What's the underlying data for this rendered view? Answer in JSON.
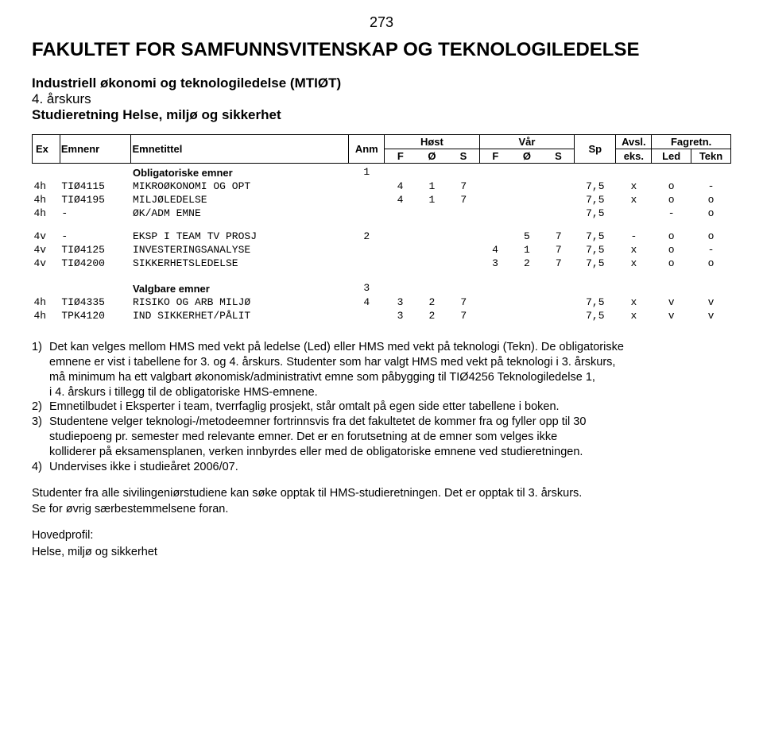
{
  "page_number": "273",
  "faculty_title": "FAKULTET FOR SAMFUNNSVITENSKAP OG TEKNOLOGILEDELSE",
  "subtitle_line1": "Industriell økonomi og teknologiledelse (MTIØT)",
  "subtitle_line2": "4. årskurs",
  "subtitle_line3": "Studieretning Helse, miljø og sikkerhet",
  "headers": {
    "ex": "Ex",
    "emnenr": "Emnenr",
    "emnetittel": "Emnetittel",
    "anm": "Anm",
    "host": "Høst",
    "var": "Vår",
    "sp": "Sp",
    "avsl": "Avsl.",
    "fagretn": "Fagretn.",
    "F": "F",
    "O": "Ø",
    "S": "S",
    "eks": "eks.",
    "led": "Led",
    "tekn": "Tekn"
  },
  "sections": [
    {
      "title": "Obligatoriske emner",
      "anm": "1",
      "rows": [
        {
          "ex": "4h",
          "code": "TIØ4115",
          "name": "MIKROØKONOMI OG OPT",
          "anm": "",
          "F1": "4",
          "O1": "1",
          "S1": "7",
          "F2": "",
          "O2": "",
          "S2": "",
          "sp": "7,5",
          "av": "x",
          "led": "o",
          "tek": "-"
        },
        {
          "ex": "4h",
          "code": "TIØ4195",
          "name": "MILJØLEDELSE",
          "anm": "",
          "F1": "4",
          "O1": "1",
          "S1": "7",
          "F2": "",
          "O2": "",
          "S2": "",
          "sp": "7,5",
          "av": "x",
          "led": "o",
          "tek": "o"
        },
        {
          "ex": "4h",
          "code": "-",
          "name": "ØK/ADM EMNE",
          "anm": "",
          "F1": "",
          "O1": "",
          "S1": "",
          "F2": "",
          "O2": "",
          "S2": "",
          "sp": "7,5",
          "av": "",
          "led": "-",
          "tek": "o"
        }
      ]
    },
    {
      "title": "",
      "anm": "",
      "rows": [
        {
          "ex": "4v",
          "code": "-",
          "name": "EKSP I TEAM TV PROSJ",
          "anm": "2",
          "F1": "",
          "O1": "",
          "S1": "",
          "F2": "",
          "O2": "5",
          "S2": "7",
          "sp": "7,5",
          "av": "-",
          "led": "o",
          "tek": "o"
        },
        {
          "ex": "4v",
          "code": "TIØ4125",
          "name": "INVESTERINGSANALYSE",
          "anm": "",
          "F1": "",
          "O1": "",
          "S1": "",
          "F2": "4",
          "O2": "1",
          "S2": "7",
          "sp": "7,5",
          "av": "x",
          "led": "o",
          "tek": "-"
        },
        {
          "ex": "4v",
          "code": "TIØ4200",
          "name": "SIKKERHETSLEDELSE",
          "anm": "",
          "F1": "",
          "O1": "",
          "S1": "",
          "F2": "3",
          "O2": "2",
          "S2": "7",
          "sp": "7,5",
          "av": "x",
          "led": "o",
          "tek": "o"
        }
      ]
    },
    {
      "title": "Valgbare emner",
      "anm": "3",
      "rows": [
        {
          "ex": "4h",
          "code": "TIØ4335",
          "name": "RISIKO OG ARB MILJØ",
          "anm": "4",
          "F1": "3",
          "O1": "2",
          "S1": "7",
          "F2": "",
          "O2": "",
          "S2": "",
          "sp": "7,5",
          "av": "x",
          "led": "v",
          "tek": "v"
        },
        {
          "ex": "4h",
          "code": "TPK4120",
          "name": "IND SIKKERHET/PÅLIT",
          "anm": "",
          "F1": "3",
          "O1": "2",
          "S1": "7",
          "F2": "",
          "O2": "",
          "S2": "",
          "sp": "7,5",
          "av": "x",
          "led": "v",
          "tek": "v"
        }
      ]
    }
  ],
  "notes": [
    {
      "n": "1)",
      "lines": [
        "Det kan velges mellom HMS med vekt på ledelse (Led) eller HMS med vekt på teknologi (Tekn). De obligatoriske",
        "emnene er vist i tabellene for 3. og 4. årskurs. Studenter som har valgt HMS med vekt på teknologi i 3. årskurs,",
        "må minimum ha ett valgbart økonomisk/administrativt emne som påbygging til TIØ4256 Teknologiledelse 1,",
        "i 4. årskurs i tillegg til de obligatoriske HMS-emnene."
      ]
    },
    {
      "n": "2)",
      "lines": [
        "Emnetilbudet i Eksperter i team, tverrfaglig prosjekt, står omtalt på egen side etter tabellene i boken."
      ]
    },
    {
      "n": "3)",
      "lines": [
        "Studentene velger teknologi-/metodeemner fortrinnsvis fra det fakultetet de kommer fra og fyller opp til 30",
        "studiepoeng pr. semester med relevante emner. Det er en forutsetning at de emner som velges ikke",
        "kolliderer på eksamensplanen, verken innbyrdes eller med de obligatoriske emnene ved studieretningen."
      ]
    },
    {
      "n": "4)",
      "lines": [
        "Undervises ikke i studieåret 2006/07."
      ]
    }
  ],
  "paragraphs": [
    [
      "Studenter fra alle sivilingeniørstudiene kan søke opptak til HMS-studieretningen. Det er opptak til 3. årskurs.",
      "Se for øvrig særbestemmelsene foran."
    ],
    [
      "Hovedprofil:",
      "Helse, miljø og sikkerhet"
    ]
  ]
}
